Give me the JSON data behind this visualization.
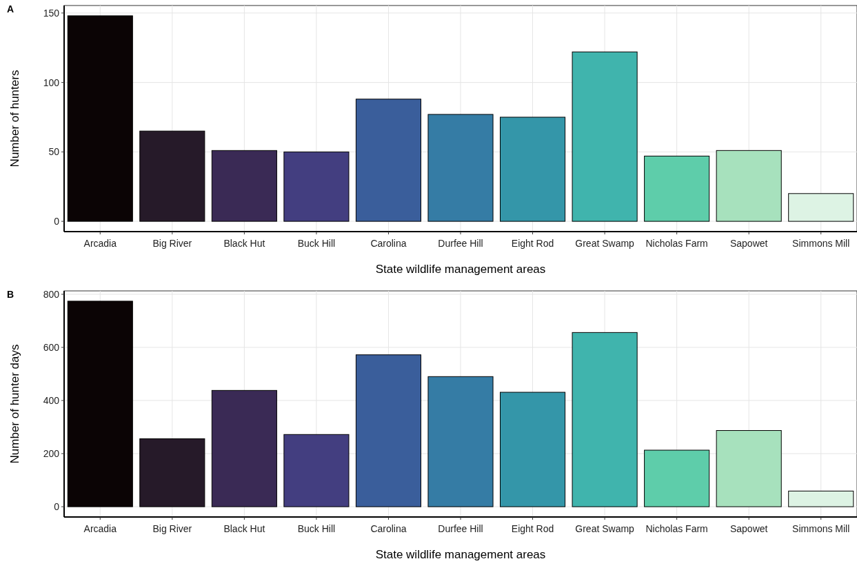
{
  "chart_data": [
    {
      "type": "bar",
      "annotations": [
        "A"
      ],
      "xlabel": "State wildlife management areas",
      "ylabel": "Number of hunters",
      "categories": [
        "Arcadia",
        "Big River",
        "Black Hut",
        "Buck Hill",
        "Carolina",
        "Durfee Hill",
        "Eight Rod",
        "Great Swamp",
        "Nicholas Farm",
        "Sapowet",
        "Simmons Mill"
      ],
      "values": [
        148,
        65,
        51,
        50,
        88,
        77,
        75,
        122,
        47,
        51,
        20
      ],
      "colors": [
        "#0b0405",
        "#261a29",
        "#3a2a55",
        "#433e80",
        "#3a5e9b",
        "#357ca5",
        "#3496a9",
        "#40b4ad",
        "#5ecdaa",
        "#a7e1bd",
        "#ddf3e4"
      ],
      "ylim": [
        -7.4,
        155.4
      ],
      "yticks": [
        0,
        50,
        100,
        150
      ],
      "grid": true
    },
    {
      "type": "bar",
      "annotations": [
        "B"
      ],
      "xlabel": "State wildlife management areas",
      "ylabel": "Number of hunter days",
      "categories": [
        "Arcadia",
        "Big River",
        "Black Hut",
        "Buck Hill",
        "Carolina",
        "Durfee Hill",
        "Eight Rod",
        "Great Swamp",
        "Nicholas Farm",
        "Sapowet",
        "Simmons Mill"
      ],
      "values": [
        774,
        256,
        438,
        272,
        572,
        490,
        431,
        656,
        213,
        287,
        59
      ],
      "colors": [
        "#0b0405",
        "#261a29",
        "#3a2a55",
        "#433e80",
        "#3a5e9b",
        "#357ca5",
        "#3496a9",
        "#40b4ad",
        "#5ecdaa",
        "#a7e1bd",
        "#ddf3e4"
      ],
      "ylim": [
        -38.7,
        812.7
      ],
      "yticks": [
        0,
        200,
        400,
        600,
        800
      ],
      "grid": true
    }
  ]
}
